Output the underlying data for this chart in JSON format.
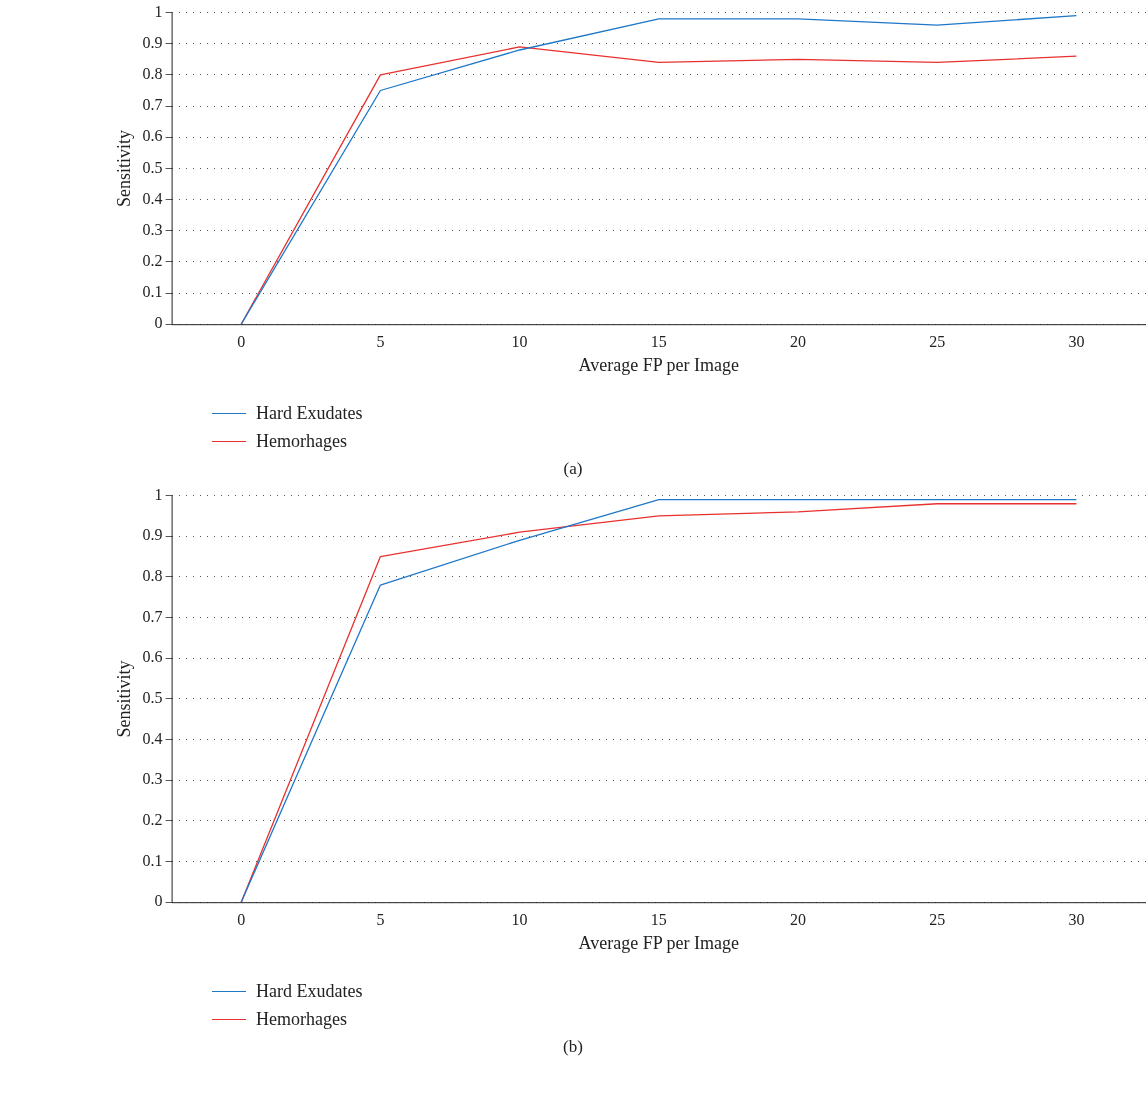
{
  "chart_data": [
    {
      "type": "line",
      "xlabel": "Average FP per Image",
      "ylabel": "Sensitivity",
      "categories": [
        "0",
        "5",
        "10",
        "15",
        "20",
        "25",
        "30"
      ],
      "ylim": [
        0,
        1
      ],
      "yticks": [
        0,
        0.1,
        0.2,
        0.3,
        0.4,
        0.5,
        0.6,
        0.7,
        0.8,
        0.9,
        1
      ],
      "grid": "y",
      "legend": "bottom left",
      "marker": "none",
      "line_style": "solid",
      "annotations": [
        "(a)"
      ],
      "series": [
        {
          "name": "Hard Exudates",
          "color": "#1f77c8",
          "values": [
            0,
            0.75,
            0.88,
            0.98,
            0.98,
            0.96,
            0.99
          ]
        },
        {
          "name": "Hemorhages",
          "color": "#e8312f",
          "values": [
            0,
            0.8,
            0.89,
            0.84,
            0.85,
            0.84,
            0.86
          ]
        }
      ]
    },
    {
      "type": "line",
      "xlabel": "Average FP per Image",
      "ylabel": "Sensitivity",
      "categories": [
        "0",
        "5",
        "10",
        "15",
        "20",
        "25",
        "30"
      ],
      "ylim": [
        0,
        1
      ],
      "yticks": [
        0,
        0.1,
        0.2,
        0.3,
        0.4,
        0.5,
        0.6,
        0.7,
        0.8,
        0.9,
        1
      ],
      "grid": "y",
      "legend": "bottom left",
      "marker": "none",
      "line_style": "solid",
      "annotations": [
        "(b)"
      ],
      "series": [
        {
          "name": "Hard Exudates",
          "color": "#1f77c8",
          "values": [
            0,
            0.78,
            0.89,
            0.99,
            0.99,
            0.99,
            0.99
          ]
        },
        {
          "name": "Hemorhages",
          "color": "#e8312f",
          "values": [
            0,
            0.85,
            0.91,
            0.95,
            0.96,
            0.98,
            0.98
          ]
        }
      ]
    }
  ]
}
